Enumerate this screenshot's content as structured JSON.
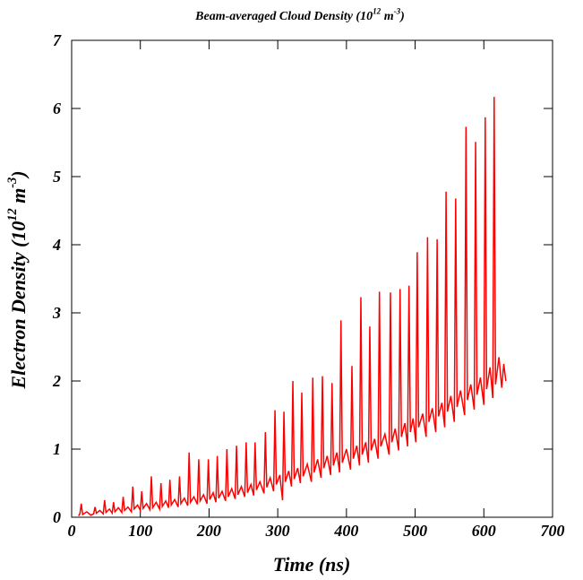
{
  "chart_data": {
    "type": "line",
    "title_parts": [
      "Beam-averaged Cloud Density (10",
      "12",
      " m",
      "-3",
      ")"
    ],
    "ylabel_parts": [
      "Electron Density (10",
      "12",
      " m",
      "-3",
      ")"
    ],
    "xlabel": "Time (ns)",
    "color": "#ff0000",
    "xlim": [
      0,
      700
    ],
    "xticks": [
      0,
      100,
      200,
      300,
      400,
      500,
      600,
      700
    ],
    "ylim": [
      0,
      7
    ],
    "yticks": [
      0,
      1,
      2,
      3,
      4,
      5,
      6,
      7
    ],
    "x": [
      10,
      12,
      14,
      16,
      22,
      28,
      32,
      34,
      36,
      41,
      46,
      48,
      50,
      55,
      59,
      61,
      63,
      68,
      73,
      75,
      77,
      82,
      87,
      89,
      91,
      96,
      100,
      102,
      104,
      109,
      114,
      116,
      118,
      123,
      128,
      130,
      132,
      137,
      141,
      143,
      145,
      150,
      155,
      157,
      159,
      164,
      169,
      171,
      173,
      178,
      183,
      185,
      187,
      192,
      197,
      199,
      201,
      206,
      210,
      212,
      214,
      219,
      224,
      226,
      228,
      233,
      238,
      240,
      242,
      247,
      252,
      254,
      256,
      261,
      265,
      267,
      269,
      274,
      280,
      282,
      284,
      289,
      294,
      296,
      298,
      303,
      307,
      309,
      311,
      316,
      320,
      322,
      324,
      329,
      333,
      335,
      337,
      343,
      349,
      351,
      353,
      358,
      363,
      365,
      367,
      372,
      377,
      379,
      381,
      386,
      390,
      392,
      394,
      400,
      406,
      408,
      410,
      415,
      419,
      421,
      423,
      428,
      432,
      434,
      436,
      441,
      446,
      448,
      450,
      456,
      462,
      464,
      466,
      471,
      476,
      478,
      480,
      485,
      489,
      491,
      493,
      497,
      501,
      503,
      505,
      511,
      516,
      518,
      520,
      525,
      530,
      532,
      534,
      539,
      543,
      545,
      547,
      552,
      557,
      559,
      561,
      566,
      572,
      574,
      576,
      581,
      586,
      588,
      590,
      595,
      600,
      602,
      604,
      609,
      613,
      615,
      617,
      622,
      626,
      629,
      632
    ],
    "values": [
      0.02,
      0.05,
      0.2,
      0.04,
      0.08,
      0.03,
      0.05,
      0.15,
      0.06,
      0.1,
      0.05,
      0.25,
      0.07,
      0.12,
      0.06,
      0.22,
      0.08,
      0.14,
      0.07,
      0.3,
      0.1,
      0.15,
      0.08,
      0.45,
      0.12,
      0.18,
      0.1,
      0.38,
      0.13,
      0.2,
      0.11,
      0.6,
      0.14,
      0.22,
      0.12,
      0.5,
      0.16,
      0.24,
      0.14,
      0.55,
      0.18,
      0.26,
      0.15,
      0.6,
      0.2,
      0.28,
      0.17,
      0.95,
      0.22,
      0.3,
      0.19,
      0.85,
      0.24,
      0.33,
      0.2,
      0.85,
      0.26,
      0.36,
      0.22,
      0.9,
      0.28,
      0.38,
      0.24,
      1.0,
      0.3,
      0.42,
      0.27,
      1.05,
      0.33,
      0.45,
      0.3,
      1.1,
      0.36,
      0.48,
      0.32,
      1.1,
      0.4,
      0.52,
      0.35,
      1.25,
      0.44,
      0.58,
      0.38,
      1.57,
      0.48,
      0.62,
      0.25,
      1.55,
      0.52,
      0.68,
      0.45,
      2.0,
      0.56,
      0.72,
      0.5,
      1.83,
      0.6,
      0.78,
      0.52,
      2.05,
      0.66,
      0.85,
      0.58,
      2.07,
      0.72,
      0.9,
      0.62,
      1.97,
      0.76,
      0.95,
      0.66,
      2.89,
      0.8,
      1.0,
      0.7,
      2.22,
      0.86,
      1.05,
      0.76,
      3.23,
      0.92,
      1.1,
      0.8,
      2.8,
      0.98,
      1.15,
      0.86,
      3.31,
      1.04,
      1.22,
      0.92,
      3.3,
      1.1,
      1.3,
      0.98,
      3.35,
      1.18,
      1.38,
      1.04,
      3.4,
      1.25,
      1.45,
      1.1,
      3.89,
      1.32,
      1.52,
      1.18,
      4.11,
      1.4,
      1.6,
      1.25,
      4.08,
      1.48,
      1.68,
      1.32,
      4.78,
      1.55,
      1.78,
      1.4,
      4.68,
      1.62,
      1.86,
      1.5,
      5.73,
      1.72,
      1.95,
      1.58,
      5.51,
      1.8,
      2.05,
      1.65,
      5.87,
      1.88,
      2.2,
      1.75,
      6.17,
      1.95,
      2.35,
      1.9,
      2.25,
      2.0
    ]
  }
}
